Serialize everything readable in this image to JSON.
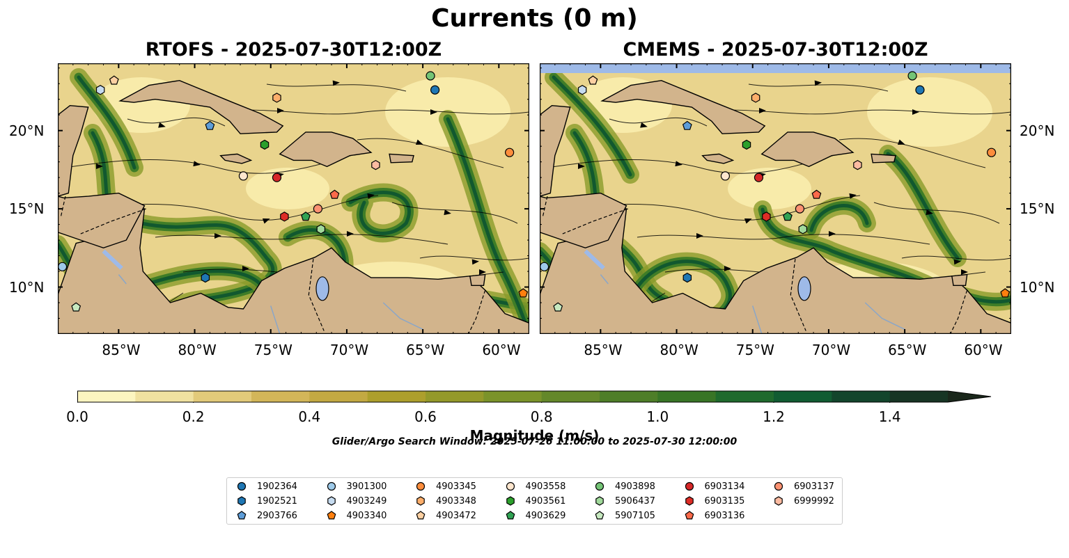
{
  "title": "Currents (0 m)",
  "panels": [
    {
      "title": "RTOFS - 2025-07-30T12:00Z"
    },
    {
      "title": "CMEMS - 2025-07-30T12:00Z"
    }
  ],
  "axes": {
    "lon_ticks": [
      "85°W",
      "80°W",
      "75°W",
      "70°W",
      "65°W",
      "60°W"
    ],
    "lat_ticks": [
      "20°N",
      "15°N",
      "10°N"
    ],
    "lon_range": [
      -89.0,
      -58.0
    ],
    "lat_range": [
      7.0,
      24.3
    ]
  },
  "colorbar": {
    "label": "Magnitude (m/s)",
    "ticks": [
      "0.0",
      "0.2",
      "0.4",
      "0.6",
      "0.8",
      "1.0",
      "1.2",
      "1.4"
    ],
    "range": [
      0.0,
      1.5
    ],
    "extend": "max",
    "colors": [
      "#fcf5c0",
      "#f0e1a0",
      "#e2ca7a",
      "#d3b659",
      "#c3a942",
      "#ad9f2c",
      "#94992a",
      "#7b932a",
      "#64882a",
      "#4e7e28",
      "#387526",
      "#1f6a2d",
      "#115c32",
      "#13452c",
      "#173524",
      "#1a271b"
    ]
  },
  "search_window": "Glider/Argo Search Window: 2025-07-26 11:00:00 to 2025-07-30 12:00:00",
  "colors": {
    "land": "#d2b48c",
    "water": "#9ebae8",
    "ocean_bg": "#e9d48d"
  },
  "chart_data": {
    "type": "map",
    "floats": [
      {
        "id": "1902364",
        "marker": "circle",
        "color": "#1f77b4",
        "rtofs": [
          -64.2,
          22.6
        ],
        "cmems": [
          -64.0,
          22.6
        ]
      },
      {
        "id": "1902521",
        "marker": "hexagon",
        "color": "#1f77b4",
        "rtofs": [
          -79.3,
          10.6
        ],
        "cmems": [
          -79.3,
          10.6
        ]
      },
      {
        "id": "2903766",
        "marker": "pentagon",
        "color": "#5e9dd8",
        "rtofs": [
          -79.0,
          20.3
        ],
        "cmems": [
          -79.3,
          20.3
        ]
      },
      {
        "id": "3901300",
        "marker": "circle",
        "color": "#9ecae9",
        "rtofs": [
          -88.7,
          11.3
        ],
        "cmems": [
          -88.7,
          11.3
        ]
      },
      {
        "id": "4903249",
        "marker": "hexagon",
        "color": "#c6dbef",
        "rtofs": [
          -86.2,
          22.6
        ],
        "cmems": [
          -86.2,
          22.6
        ]
      },
      {
        "id": "4903340",
        "marker": "pentagon",
        "color": "#ff7f0e",
        "rtofs": [
          -58.4,
          9.6
        ],
        "cmems": [
          -58.4,
          9.6
        ]
      },
      {
        "id": "4903345",
        "marker": "circle",
        "color": "#fd8d3c",
        "rtofs": [
          -59.3,
          18.6
        ],
        "cmems": [
          -59.3,
          18.6
        ]
      },
      {
        "id": "4903348",
        "marker": "hexagon",
        "color": "#fdae6b",
        "rtofs": [
          -74.6,
          22.1
        ],
        "cmems": [
          -74.8,
          22.1
        ]
      },
      {
        "id": "4903472",
        "marker": "pentagon",
        "color": "#fdd0a2",
        "rtofs": [
          -85.3,
          23.2
        ],
        "cmems": [
          -85.5,
          23.2
        ]
      },
      {
        "id": "4903558",
        "marker": "circle",
        "color": "#fee6ce",
        "rtofs": [
          -76.8,
          17.1
        ],
        "cmems": [
          -76.8,
          17.1
        ]
      },
      {
        "id": "4903561",
        "marker": "hexagon",
        "color": "#2ca02c",
        "rtofs": [
          -75.4,
          19.1
        ],
        "cmems": [
          -75.4,
          19.1
        ]
      },
      {
        "id": "4903629",
        "marker": "pentagon",
        "color": "#31a354",
        "rtofs": [
          -72.7,
          14.5
        ],
        "cmems": [
          -72.7,
          14.5
        ]
      },
      {
        "id": "4903898",
        "marker": "circle",
        "color": "#74c476",
        "rtofs": [
          -64.5,
          23.5
        ],
        "cmems": [
          -64.5,
          23.5
        ]
      },
      {
        "id": "5906437",
        "marker": "hexagon",
        "color": "#a1d99b",
        "rtofs": [
          -71.7,
          13.7
        ],
        "cmems": [
          -71.7,
          13.7
        ]
      },
      {
        "id": "5907105",
        "marker": "pentagon",
        "color": "#c7e9c0",
        "rtofs": [
          -87.8,
          8.7
        ],
        "cmems": [
          -87.8,
          8.7
        ]
      },
      {
        "id": "6903134",
        "marker": "circle",
        "color": "#d62728",
        "rtofs": [
          -74.6,
          17.0
        ],
        "cmems": [
          -74.6,
          17.0
        ]
      },
      {
        "id": "6903135",
        "marker": "hexagon",
        "color": "#de2d26",
        "rtofs": [
          -74.1,
          14.5
        ],
        "cmems": [
          -74.1,
          14.5
        ]
      },
      {
        "id": "6903136",
        "marker": "pentagon",
        "color": "#fb6a4a",
        "rtofs": [
          -70.8,
          15.9
        ],
        "cmems": [
          -70.8,
          15.9
        ]
      },
      {
        "id": "6903137",
        "marker": "circle",
        "color": "#fc9272",
        "rtofs": [
          -71.9,
          15.0
        ],
        "cmems": [
          -71.9,
          15.0
        ]
      },
      {
        "id": "6999992",
        "marker": "hexagon",
        "color": "#fcbba1",
        "rtofs": [
          -68.1,
          17.8
        ],
        "cmems": [
          -68.1,
          17.8
        ]
      }
    ]
  }
}
